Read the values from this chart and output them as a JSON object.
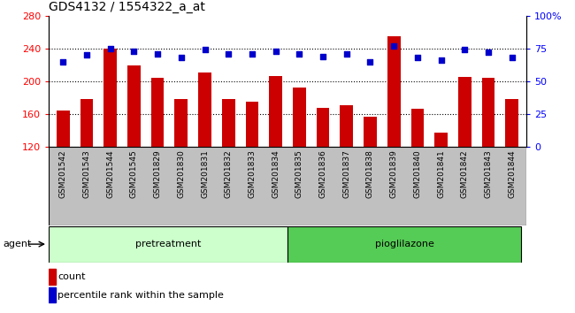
{
  "title": "GDS4132 / 1554322_a_at",
  "categories": [
    "GSM201542",
    "GSM201543",
    "GSM201544",
    "GSM201545",
    "GSM201829",
    "GSM201830",
    "GSM201831",
    "GSM201832",
    "GSM201833",
    "GSM201834",
    "GSM201835",
    "GSM201836",
    "GSM201837",
    "GSM201838",
    "GSM201839",
    "GSM201840",
    "GSM201841",
    "GSM201842",
    "GSM201843",
    "GSM201844"
  ],
  "bar_values": [
    165,
    178,
    240,
    219,
    204,
    178,
    211,
    179,
    175,
    206,
    193,
    168,
    171,
    157,
    255,
    167,
    138,
    205,
    204,
    178
  ],
  "dot_values": [
    65,
    70,
    75,
    73,
    71,
    68,
    74,
    71,
    71,
    73,
    71,
    69,
    71,
    65,
    77,
    68,
    66,
    74,
    72,
    68
  ],
  "ylim_left": [
    120,
    280
  ],
  "ylim_right": [
    0,
    100
  ],
  "yticks_left": [
    120,
    160,
    200,
    240,
    280
  ],
  "yticks_right": [
    0,
    25,
    50,
    75,
    100
  ],
  "bar_color": "#cc0000",
  "dot_color": "#0000cc",
  "group1_label": "pretreatment",
  "group2_label": "pioglilazone",
  "agent_label": "agent",
  "legend_count": "count",
  "legend_pct": "percentile rank within the sample",
  "bg_color_main": "#ffffff",
  "bg_color_xaxis": "#c0c0c0",
  "group1_color": "#ccffcc",
  "group2_color": "#55cc55",
  "title_fontsize": 10,
  "tick_fontsize": 6.5,
  "bar_width": 0.55
}
